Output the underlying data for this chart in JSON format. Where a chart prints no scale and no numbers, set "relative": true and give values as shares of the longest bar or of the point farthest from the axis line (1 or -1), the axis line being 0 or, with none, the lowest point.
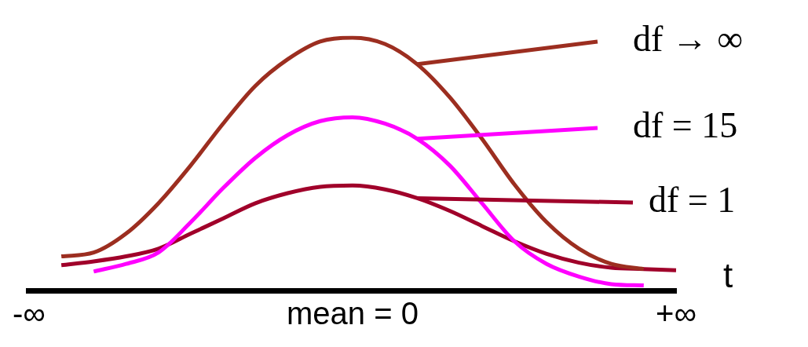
{
  "chart_data": {
    "type": "line",
    "relative": true,
    "xlabel": "t",
    "legend": "right",
    "grid": false,
    "marker": "none",
    "line_style": "solid",
    "categories": [
      "-∞",
      null,
      null,
      null,
      null,
      null,
      null,
      null,
      null,
      null,
      "mean = 0",
      null,
      null,
      null,
      null,
      null,
      null,
      null,
      null,
      null,
      "+∞"
    ],
    "series": [
      {
        "name": "df → ∞",
        "color": "#9c2e20",
        "values": [
          null,
          0.135,
          0.15,
          0.225,
          0.345,
          0.495,
          0.66,
          0.81,
          0.915,
          0.985,
          1,
          0.975,
          0.895,
          0.765,
          0.6,
          0.42,
          0.27,
          0.165,
          0.105,
          0.085,
          null
        ]
      },
      {
        "name": "df = 15",
        "color": "#ff00ff",
        "values": [
          null,
          null,
          0.075,
          0.105,
          0.15,
          0.27,
          0.405,
          0.525,
          0.615,
          0.67,
          0.685,
          0.66,
          0.6,
          0.495,
          0.345,
          0.195,
          0.105,
          0.055,
          0.025,
          0.02,
          null
        ]
      },
      {
        "name": "df = 1",
        "color": "#a0002a",
        "values": [
          null,
          0.1,
          0.115,
          0.135,
          0.165,
          0.225,
          0.285,
          0.345,
          0.385,
          0.41,
          0.415,
          0.4,
          0.365,
          0.315,
          0.255,
          0.195,
          0.145,
          0.11,
          0.09,
          0.085,
          0.08
        ]
      }
    ]
  }
}
